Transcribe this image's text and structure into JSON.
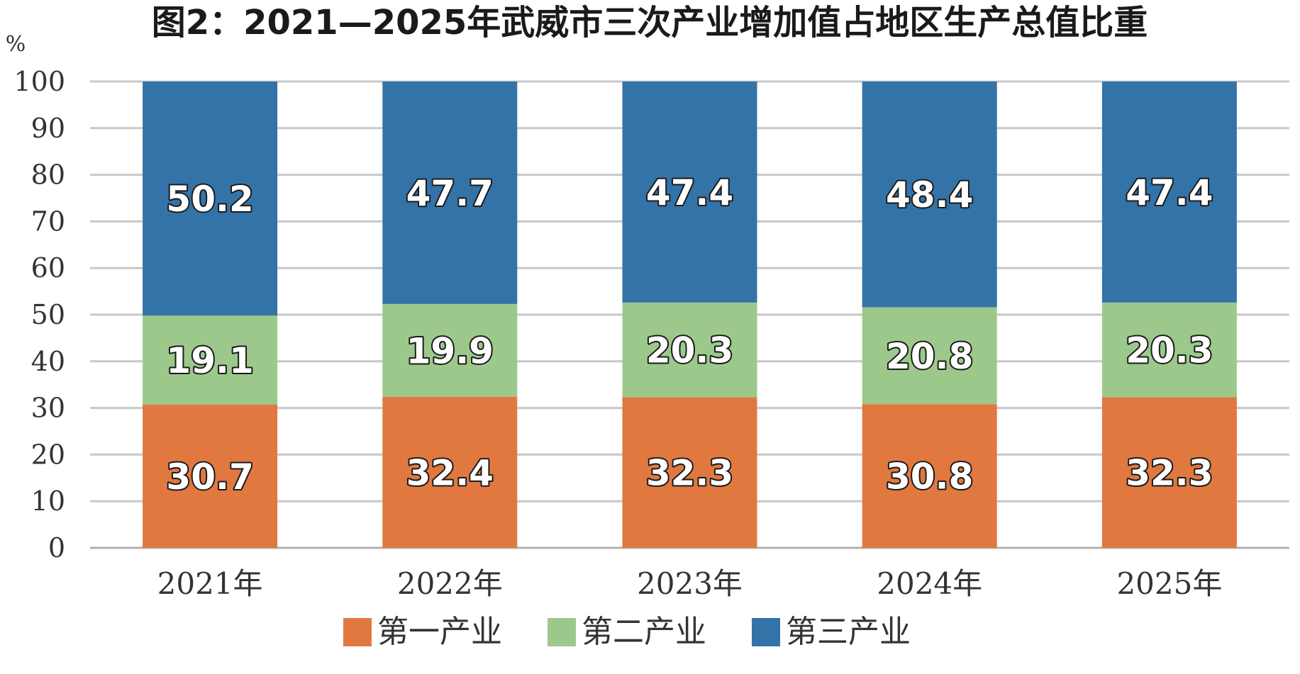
{
  "chart_data": {
    "type": "bar",
    "stacked": true,
    "title": "图2：2021—2025年武威市三次产业增加值占地区生产总值比重",
    "unit": "%",
    "categories": [
      "2021年",
      "2022年",
      "2023年",
      "2024年",
      "2025年"
    ],
    "ylim": [
      0,
      100
    ],
    "yticks": [
      "0",
      "10",
      "20",
      "30",
      "40",
      "50",
      "60",
      "70",
      "80",
      "90",
      "100"
    ],
    "grid": true,
    "legend_position": "bottom",
    "series": [
      {
        "name": "第一产业",
        "color": "#E07840",
        "values": [
          30.7,
          32.4,
          32.3,
          30.8,
          32.3
        ],
        "labels": [
          "30.7",
          "32.4",
          "32.3",
          "30.8",
          "32.3"
        ]
      },
      {
        "name": "第二产业",
        "color": "#9CC98B",
        "values": [
          19.1,
          19.9,
          20.3,
          20.8,
          20.3
        ],
        "labels": [
          "19.1",
          "19.9",
          "20.3",
          "20.8",
          "20.3"
        ]
      },
      {
        "name": "第三产业",
        "color": "#3473A8",
        "values": [
          50.2,
          47.7,
          47.4,
          48.4,
          47.4
        ],
        "labels": [
          "50.2",
          "47.7",
          "47.4",
          "48.4",
          "47.4"
        ]
      }
    ]
  }
}
